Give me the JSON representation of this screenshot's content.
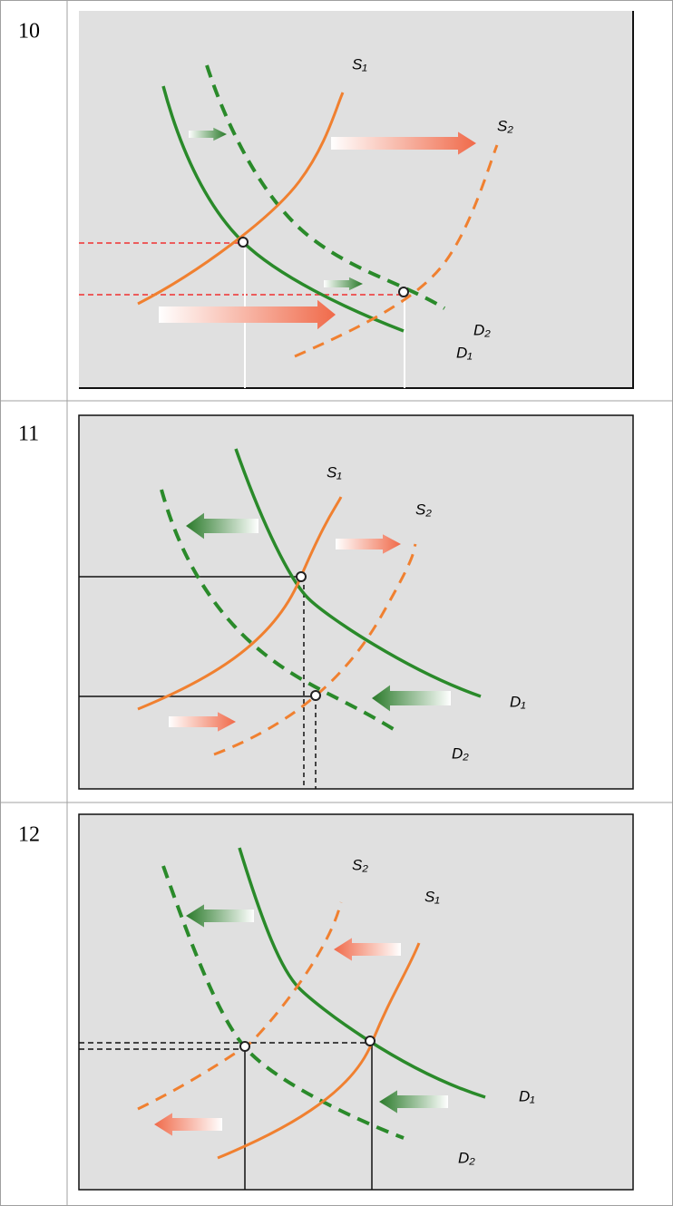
{
  "rows": [
    {
      "number": "10",
      "labels": [
        "S₁",
        "S₂",
        "D₂",
        "D₁"
      ]
    },
    {
      "number": "11",
      "labels": [
        "S₁",
        "S₂",
        "D₁",
        "D₂"
      ]
    },
    {
      "number": "12",
      "labels": [
        "S₂",
        "S₁",
        "D₁",
        "D₂"
      ]
    }
  ]
}
